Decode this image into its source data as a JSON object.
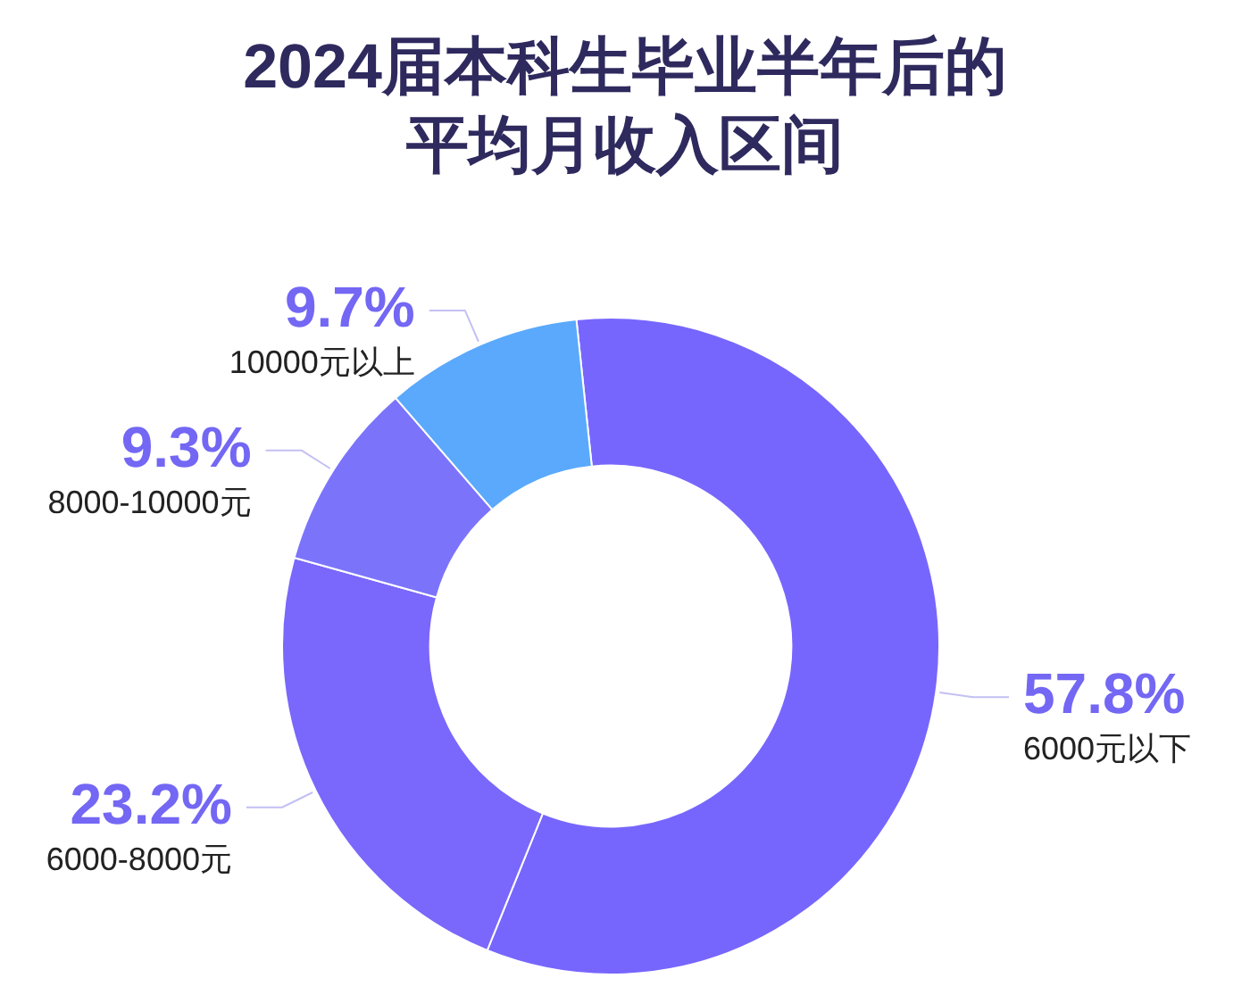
{
  "chart_data": {
    "type": "donut",
    "title": "2024届本科生毕业半年后的平均月收入区间",
    "categories": [
      "6000元以下",
      "6000-8000元",
      "8000-10000元",
      "10000元以上"
    ],
    "values": [
      57.8,
      23.2,
      9.3,
      9.7
    ],
    "value_labels": [
      "57.8%",
      "23.2%",
      "9.3%",
      "9.7%"
    ],
    "colors": [
      "#7766fd",
      "#7a67fb",
      "#7b74fb",
      "#5aa9fc"
    ]
  }
}
